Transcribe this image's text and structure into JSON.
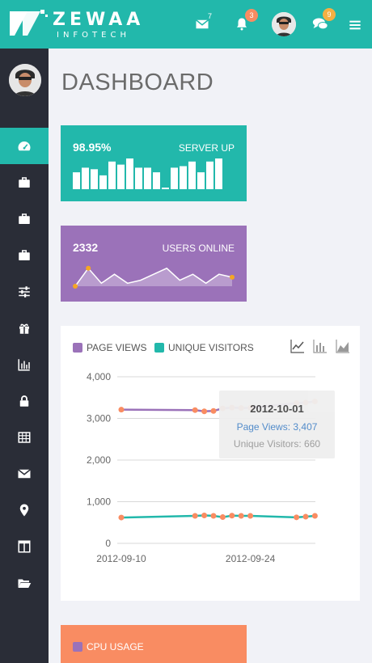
{
  "brand": {
    "name": "ZEWAA",
    "sub": "INFOTECH"
  },
  "header": {
    "mail_count": "7",
    "bell_count": "3",
    "chat_count": "9",
    "icons": [
      "envelope-icon",
      "bell-icon",
      "avatar",
      "comments-icon",
      "menu-icon"
    ],
    "badge_colors": {
      "bell": "#f98c62",
      "chat": "#f5b043"
    }
  },
  "sidebar": {
    "items": [
      {
        "icon": "dashboard-icon",
        "active": true
      },
      {
        "icon": "briefcase-icon"
      },
      {
        "icon": "briefcase-icon"
      },
      {
        "icon": "briefcase-icon"
      },
      {
        "icon": "sliders-icon"
      },
      {
        "icon": "gift-icon"
      },
      {
        "icon": "bar-chart-icon"
      },
      {
        "icon": "lock-icon"
      },
      {
        "icon": "table-icon"
      },
      {
        "icon": "envelope-icon"
      },
      {
        "icon": "map-marker-icon"
      },
      {
        "icon": "columns-icon"
      },
      {
        "icon": "folder-open-icon"
      }
    ]
  },
  "page": {
    "title": "DASHBOARD"
  },
  "server_card": {
    "value": "98.95%",
    "label": "SERVER UP",
    "color": "#22b8ab",
    "bars": [
      0.55,
      0.7,
      0.65,
      0.45,
      0.9,
      0.8,
      1.0,
      0.7,
      0.7,
      0.55,
      0.05,
      0.7,
      0.75,
      0.9,
      0.55,
      0.9,
      1.0
    ]
  },
  "users_card": {
    "value": "2332",
    "label": "USERS ONLINE",
    "color": "#9b72b9",
    "sparkline": [
      0.0,
      0.6,
      0.1,
      0.4,
      0.1,
      0.2,
      0.4,
      0.6,
      0.2,
      0.4,
      0.1,
      0.4,
      0.3
    ]
  },
  "chart": {
    "legend": [
      {
        "label": "PAGE VIEWS",
        "color": "#9b72b9"
      },
      {
        "label": "UNIQUE VISITORS",
        "color": "#22b8ab"
      }
    ],
    "tools": [
      "line-chart-icon",
      "bar-chart-icon",
      "area-chart-icon"
    ],
    "tooltip": {
      "date": "2012-10-01",
      "page_views": "Page Views: 3,407",
      "unique_visitors": "Unique Visitors: 660"
    }
  },
  "chart_data": {
    "type": "line",
    "y_ticks": [
      "4,000",
      "3,000",
      "2,000",
      "1,000",
      "0"
    ],
    "x_tick_labels": [
      "2012-09-10",
      "2012-09-24"
    ],
    "ylim": [
      0,
      4000
    ],
    "x_dates": [
      "2012-09-10",
      "2012-09-18",
      "2012-09-19",
      "2012-09-20",
      "2012-09-21",
      "2012-09-22",
      "2012-09-23",
      "2012-09-24",
      "2012-09-29",
      "2012-09-30",
      "2012-10-01"
    ],
    "series": [
      {
        "name": "PAGE VIEWS",
        "color": "#9b72b9",
        "values": [
          3210,
          3200,
          3170,
          3180,
          3240,
          3260,
          3250,
          3255,
          3370,
          3380,
          3407
        ]
      },
      {
        "name": "UNIQUE VISITORS",
        "color": "#22b8ab",
        "values": [
          620,
          660,
          670,
          660,
          630,
          665,
          660,
          660,
          625,
          640,
          660
        ]
      }
    ],
    "marker_color": "#f98c62",
    "grid": true
  },
  "cpu_card": {
    "label": "CPU USAGE",
    "color": "#f98c62"
  }
}
